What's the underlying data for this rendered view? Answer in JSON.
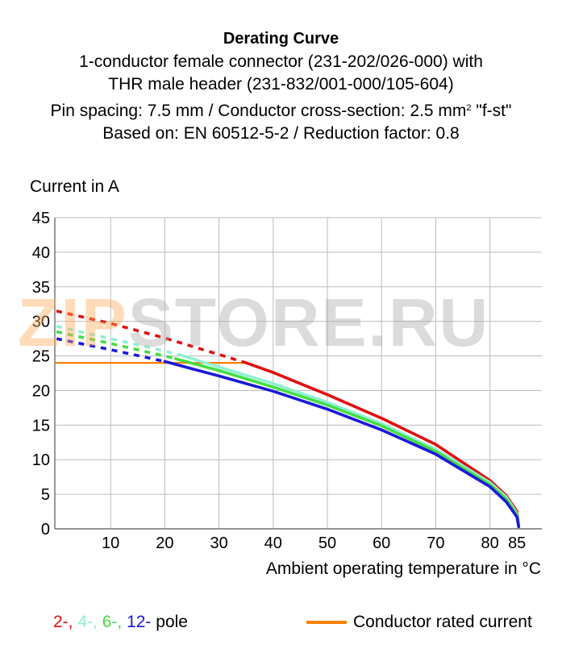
{
  "title": {
    "main": "Derating Curve",
    "line1": "1-conductor female connector (231-202/026-000) with",
    "line2": "THR male header (231-832/001-000/105-604)",
    "line3_pre": "Pin spacing: 7.5 mm / Conductor cross-section: 2.5 mm",
    "line3_sup": "2",
    "line3_post": " \"f-st\"",
    "line4": "Based on: EN 60512-5-2 / Reduction factor: 0.8"
  },
  "watermark": {
    "part1": "ZIP",
    "part2": "STORE.RU"
  },
  "legend": {
    "p2": "2-,",
    "p4": "4-,",
    "p6": "6-,",
    "p12": "12-",
    "pole": "pole",
    "rated": "Conductor rated current"
  },
  "colors": {
    "p2": "#e01010",
    "p4": "#8ff0d0",
    "p6": "#44dd44",
    "p12": "#1a1ad6",
    "rated": "#ff8000",
    "grid": "#bbbbbb"
  },
  "chart_data": {
    "type": "line",
    "xlabel": "Ambient operating temperature in °C",
    "ylabel": "Current in A",
    "xlim": [
      0,
      88
    ],
    "ylim": [
      0,
      45
    ],
    "xticks": [
      10,
      20,
      30,
      40,
      50,
      60,
      70,
      80,
      85
    ],
    "yticks": [
      0,
      5,
      10,
      15,
      20,
      25,
      30,
      35,
      40,
      45
    ],
    "grid": true,
    "series": [
      {
        "name": "2-",
        "color": "#e01010",
        "dashed": [
          [
            0,
            31.5
          ],
          [
            10,
            29.7
          ],
          [
            20,
            27.6
          ],
          [
            30,
            25.2
          ],
          [
            35,
            24
          ]
        ],
        "solid": [
          [
            35,
            24
          ],
          [
            40,
            22.6
          ],
          [
            50,
            19.4
          ],
          [
            60,
            16.0
          ],
          [
            70,
            12.2
          ],
          [
            80,
            7.0
          ],
          [
            83,
            4.8
          ],
          [
            85,
            2.5
          ],
          [
            85.3,
            0.5
          ]
        ]
      },
      {
        "name": "4-",
        "color": "#8ff0d0",
        "dashed": [
          [
            0,
            29.3
          ],
          [
            10,
            27.5
          ],
          [
            20,
            25.7
          ],
          [
            23,
            25.1
          ]
        ],
        "solid": [
          [
            23,
            25.1
          ],
          [
            30,
            23.4
          ],
          [
            40,
            21.0
          ],
          [
            50,
            18.3
          ],
          [
            60,
            15.2
          ],
          [
            70,
            11.5
          ],
          [
            80,
            6.7
          ],
          [
            83,
            4.6
          ],
          [
            85,
            2.2
          ],
          [
            85.3,
            0.5
          ]
        ]
      },
      {
        "name": "6-",
        "color": "#44dd44",
        "dashed": [
          [
            0,
            28.5
          ],
          [
            10,
            26.8
          ],
          [
            20,
            25.0
          ],
          [
            22,
            24.6
          ]
        ],
        "solid": [
          [
            22,
            24.6
          ],
          [
            30,
            22.9
          ],
          [
            40,
            20.5
          ],
          [
            50,
            17.9
          ],
          [
            60,
            14.9
          ],
          [
            70,
            11.2
          ],
          [
            80,
            6.4
          ],
          [
            83,
            4.3
          ],
          [
            85,
            2.0
          ],
          [
            85.3,
            0.5
          ]
        ]
      },
      {
        "name": "12-",
        "color": "#1a1ad6",
        "dashed": [
          [
            0,
            27.5
          ],
          [
            10,
            25.9
          ],
          [
            20,
            24.2
          ]
        ],
        "solid": [
          [
            20,
            24.2
          ],
          [
            30,
            22.1
          ],
          [
            40,
            19.9
          ],
          [
            50,
            17.3
          ],
          [
            60,
            14.3
          ],
          [
            70,
            10.8
          ],
          [
            80,
            6.1
          ],
          [
            83,
            3.9
          ],
          [
            85,
            1.7
          ],
          [
            85.3,
            0.3
          ]
        ]
      },
      {
        "name": "Conductor rated current",
        "color": "#ff8000",
        "solid": [
          [
            0,
            24
          ],
          [
            35,
            24
          ]
        ]
      }
    ]
  }
}
